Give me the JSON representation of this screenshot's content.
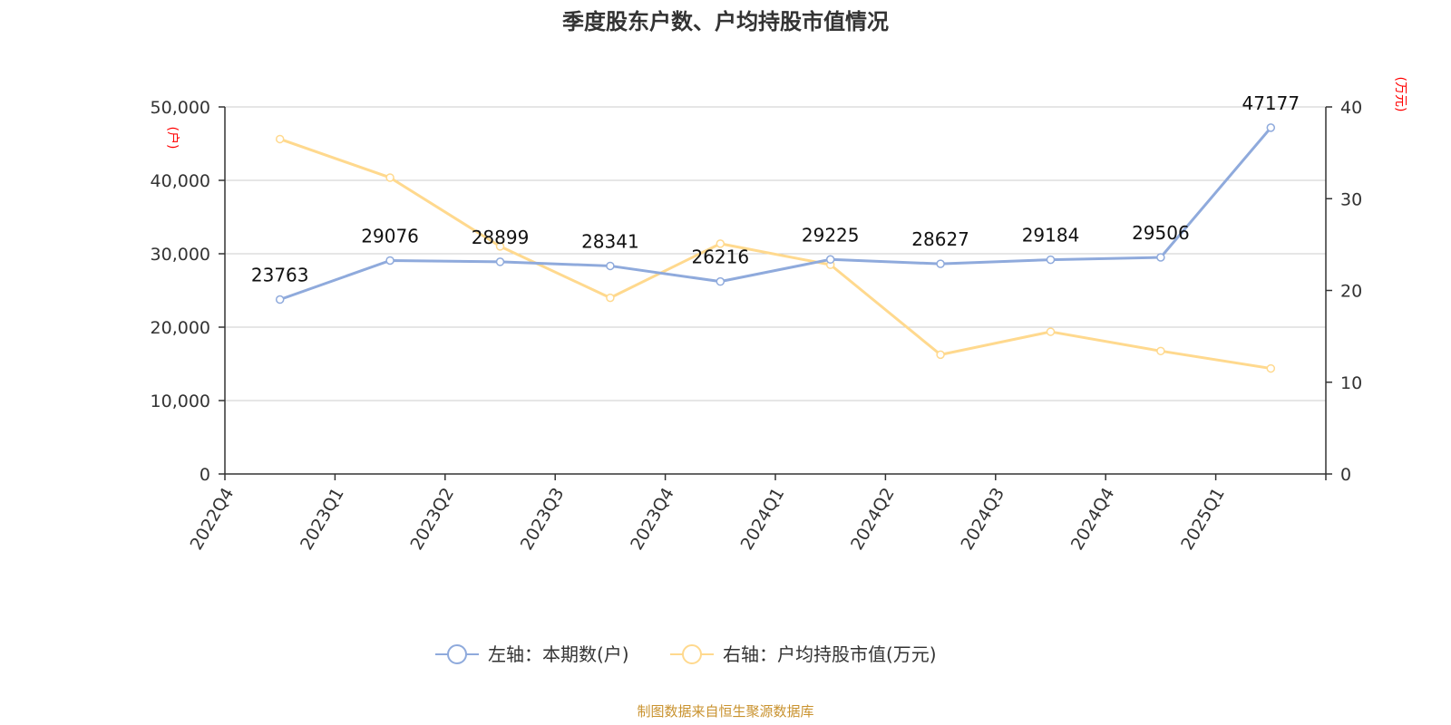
{
  "chart_data": {
    "type": "line",
    "title": "季度股东户数、户均持股市值情况",
    "categories": [
      "2022Q4",
      "2023Q1",
      "2023Q2",
      "2023Q3",
      "2023Q4",
      "2024Q1",
      "2024Q2",
      "2024Q3",
      "2024Q4",
      "2025Q1"
    ],
    "series": [
      {
        "name": "左轴：本期数(户)",
        "axis": "left",
        "color": "#8faadc",
        "values": [
          23763,
          29076,
          28899,
          28341,
          26216,
          29225,
          28627,
          29184,
          29506,
          47177
        ],
        "data_labels": [
          "23763",
          "29076",
          "28899",
          "28341",
          "26216",
          "29225",
          "28627",
          "29184",
          "29506",
          "47177"
        ]
      },
      {
        "name": "右轴：户均持股市值(万元)",
        "axis": "right",
        "color": "#ffd98e",
        "values": [
          36.5,
          32.3,
          24.8,
          19.2,
          25.1,
          22.8,
          13.0,
          15.5,
          13.4,
          11.5
        ]
      }
    ],
    "left_axis": {
      "unit": "(户)",
      "ylim": [
        0,
        50000
      ],
      "ticks": [
        0,
        10000,
        20000,
        30000,
        40000,
        50000
      ],
      "tick_labels": [
        "0",
        "10,000",
        "20,000",
        "30,000",
        "40,000",
        "50,000"
      ]
    },
    "right_axis": {
      "unit": "(万元)",
      "ylim": [
        0,
        40
      ],
      "ticks": [
        0,
        10,
        20,
        30,
        40
      ],
      "tick_labels": [
        "0",
        "10",
        "20",
        "30",
        "40"
      ]
    },
    "grid": true,
    "legend_position": "bottom-center",
    "source": "制图数据来自恒生聚源数据库"
  }
}
